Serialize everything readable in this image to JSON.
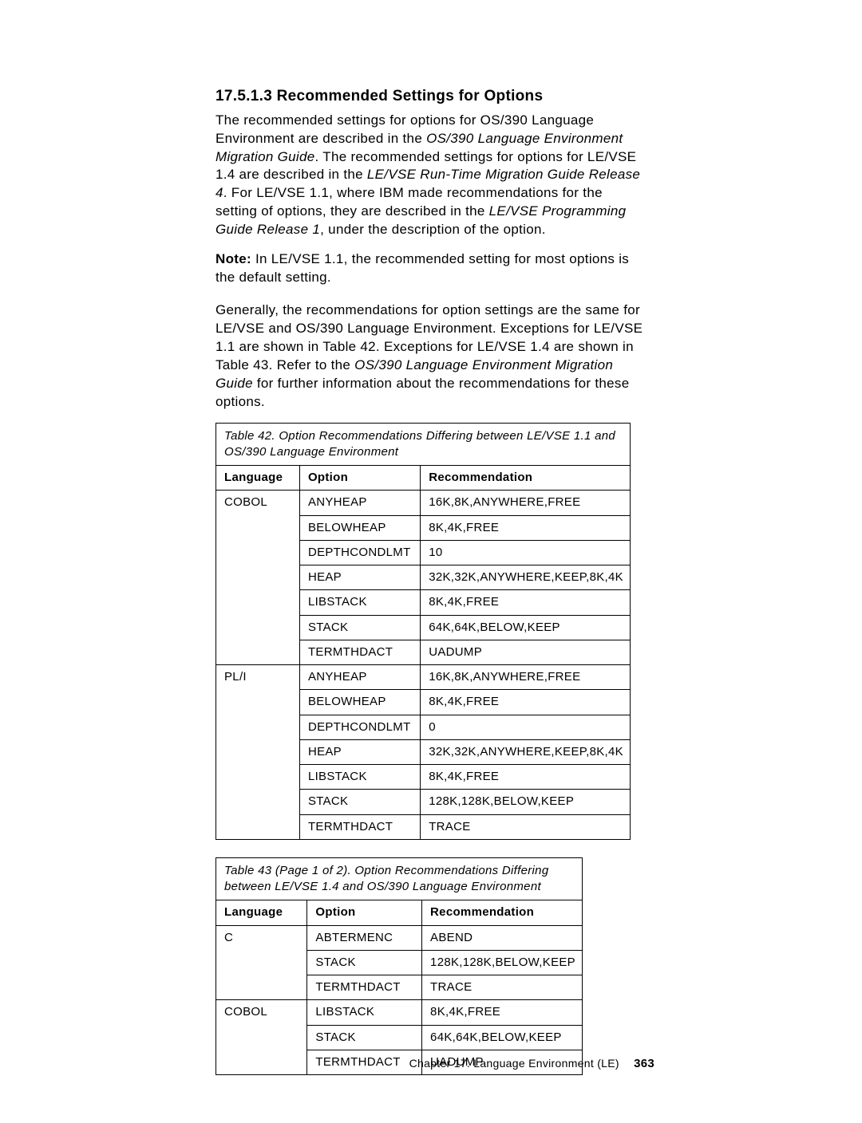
{
  "heading": "17.5.1.3  Recommended Settings for Options",
  "para1_a": "The recommended settings for options for OS/390 Language Environment are described in the ",
  "para1_i1": "OS/390 Language Environment Migration Guide",
  "para1_b": ". The recommended settings for options for LE/VSE 1.4 are described in the ",
  "para1_i2": "LE/VSE Run-Time Migration Guide Release 4",
  "para1_c": ". For LE/VSE 1.1, where IBM made recommendations for the setting of options, they are described in the ",
  "para1_i3": "LE/VSE Programming Guide Release 1",
  "para1_d": ", under the description of the option.",
  "note_label": "Note:",
  "note_text": "  In LE/VSE 1.1, the recommended setting for most options is the default setting.",
  "para2_a": "Generally, the recommendations for option settings are the same for LE/VSE and OS/390 Language Environment. Exceptions for LE/VSE 1.1 are shown in Table  42. Exceptions for LE/VSE 1.4 are shown in Table  43.  Refer to the ",
  "para2_i1": "OS/390 Language Environment Migration Guide",
  "para2_b": " for further information about the recommendations for these options.",
  "table42": {
    "caption": "Table  42.  Option Recommendations Differing between LE/VSE 1.1 and OS/390 Language Environment",
    "headers": {
      "lang": "Language",
      "opt": "Option",
      "rec": "Recommendation"
    },
    "groups": [
      {
        "lang": "COBOL",
        "rows": [
          {
            "opt": "ANYHEAP",
            "rec": "16K,8K,ANYWHERE,FREE"
          },
          {
            "opt": "BELOWHEAP",
            "rec": "8K,4K,FREE"
          },
          {
            "opt": "DEPTHCONDLMT",
            "rec": "10"
          },
          {
            "opt": "HEAP",
            "rec": "32K,32K,ANYWHERE,KEEP,8K,4K"
          },
          {
            "opt": "LIBSTACK",
            "rec": "8K,4K,FREE"
          },
          {
            "opt": "STACK",
            "rec": "64K,64K,BELOW,KEEP"
          },
          {
            "opt": "TERMTHDACT",
            "rec": "UADUMP"
          }
        ]
      },
      {
        "lang": "PL/I",
        "rows": [
          {
            "opt": "ANYHEAP",
            "rec": "16K,8K,ANYWHERE,FREE"
          },
          {
            "opt": "BELOWHEAP",
            "rec": "8K,4K,FREE"
          },
          {
            "opt": "DEPTHCONDLMT",
            "rec": "0"
          },
          {
            "opt": "HEAP",
            "rec": "32K,32K,ANYWHERE,KEEP,8K,4K"
          },
          {
            "opt": "LIBSTACK",
            "rec": "8K,4K,FREE"
          },
          {
            "opt": "STACK",
            "rec": "128K,128K,BELOW,KEEP"
          },
          {
            "opt": "TERMTHDACT",
            "rec": "TRACE"
          }
        ]
      }
    ]
  },
  "table43": {
    "caption": "Table  43 (Page  1  of 2).  Option Recommendations Differing between LE/VSE 1.4 and OS/390 Language Environment",
    "headers": {
      "lang": "Language",
      "opt": "Option",
      "rec": "Recommendation"
    },
    "groups": [
      {
        "lang": "C",
        "rows": [
          {
            "opt": "ABTERMENC",
            "rec": "ABEND"
          },
          {
            "opt": "STACK",
            "rec": "128K,128K,BELOW,KEEP"
          },
          {
            "opt": "TERMTHDACT",
            "rec": "TRACE"
          }
        ]
      },
      {
        "lang": "COBOL",
        "rows": [
          {
            "opt": "LIBSTACK",
            "rec": "8K,4K,FREE"
          },
          {
            "opt": "STACK",
            "rec": "64K,64K,BELOW,KEEP"
          },
          {
            "opt": "TERMTHDACT",
            "rec": "UADUMP"
          }
        ]
      }
    ]
  },
  "footer": {
    "chapter": "Chapter 17.  Language Environment (LE)",
    "page": "363"
  }
}
